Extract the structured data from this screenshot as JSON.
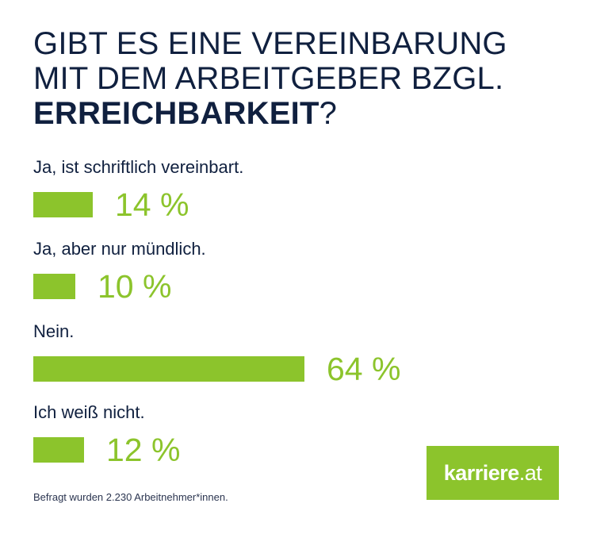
{
  "colors": {
    "accent": "#8cc42c",
    "text": "#10203f",
    "background": "#ffffff"
  },
  "title": {
    "line1": "GIBT ES EINE VEREINBARUNG",
    "line2": "MIT DEM ARBEITGEBER BZGL.",
    "line3_bold": "ERREICHBARKEIT",
    "line3_suffix": "?"
  },
  "items": [
    {
      "label": "Ja, ist schriftlich vereinbart.",
      "value": 14,
      "display": "14 %"
    },
    {
      "label": "Ja, aber nur mündlich.",
      "value": 10,
      "display": "10 %"
    },
    {
      "label": "Nein.",
      "value": 64,
      "display": "64 %"
    },
    {
      "label": "Ich weiß nicht.",
      "value": 12,
      "display": "12 %"
    }
  ],
  "footnote": "Befragt wurden 2.230 Arbeitnehmer*innen.",
  "logo": {
    "brand": "karriere",
    "tld": ".at"
  },
  "chart_data": {
    "type": "bar",
    "orientation": "horizontal",
    "title": "GIBT ES EINE VEREINBARUNG MIT DEM ARBEITGEBER BZGL. ERREICHBARKEIT?",
    "categories": [
      "Ja, ist schriftlich vereinbart.",
      "Ja, aber nur mündlich.",
      "Nein.",
      "Ich weiß nicht."
    ],
    "values": [
      14,
      10,
      64,
      12
    ],
    "unit": "%",
    "xlabel": "",
    "ylabel": "",
    "grid": false,
    "legend": null,
    "annotations": [
      "Befragt wurden 2.230 Arbeitnehmer*innen."
    ]
  }
}
